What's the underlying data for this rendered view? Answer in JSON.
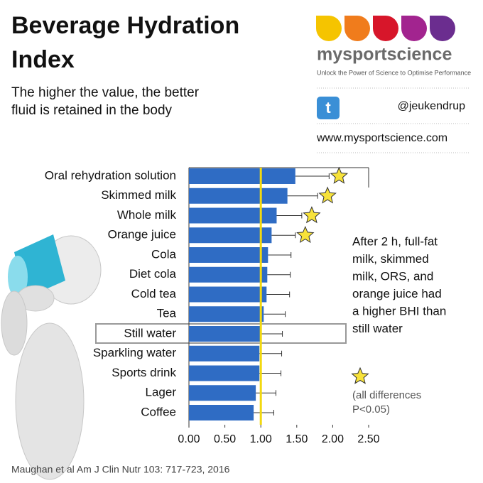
{
  "chart_data": {
    "type": "hbar",
    "title": [
      "Beverage Hydration",
      "Index"
    ],
    "subtitle": [
      "The higher the value, the better",
      "fluid is retained in the body"
    ],
    "brand": "mysportscience",
    "tagline": "Unlock the Power of Science to Optimise Performance",
    "twitter": "@jeukendrup",
    "website": "www.mysportscience.com",
    "annotation": [
      "After 2 h, full-fat",
      "milk, skimmed",
      "milk, ORS, and",
      "orange juice had",
      "a higher BHI than",
      "still water"
    ],
    "significance_note": [
      "(all differences",
      "P<0.05)"
    ],
    "source": "Maughan et al Am J Clin Nutr 103: 717-723, 2016",
    "categories": [
      "Oral rehydration solution",
      "Skimmed milk",
      "Whole milk",
      "Orange juice",
      "Cola",
      "Diet cola",
      "Cold tea",
      "Tea",
      "Still water",
      "Sparkling water",
      "Sports drink",
      "Lager",
      "Coffee"
    ],
    "values": [
      1.48,
      1.37,
      1.22,
      1.15,
      1.1,
      1.09,
      1.08,
      1.04,
      1.0,
      0.98,
      0.98,
      0.93,
      0.9
    ],
    "errors": [
      0.47,
      0.42,
      0.35,
      0.33,
      0.32,
      0.32,
      0.32,
      0.3,
      0.3,
      0.31,
      0.3,
      0.28,
      0.28
    ],
    "significant": [
      true,
      true,
      true,
      true,
      false,
      false,
      false,
      false,
      false,
      false,
      false,
      false,
      false
    ],
    "highlight": "Still water",
    "reference_line": 1.0,
    "color": "#2f6cc4",
    "reference_color": "#f2d80f",
    "xlim": [
      0,
      2.5
    ],
    "xticks": [
      {
        "value": 0,
        "label": "0.00"
      },
      {
        "value": 0.5,
        "label": "0.50"
      },
      {
        "value": 1,
        "label": "1.00"
      },
      {
        "value": 1.5,
        "label": "1.50"
      },
      {
        "value": 2,
        "label": "2.00"
      },
      {
        "value": 2.5,
        "label": "2.50"
      }
    ]
  }
}
